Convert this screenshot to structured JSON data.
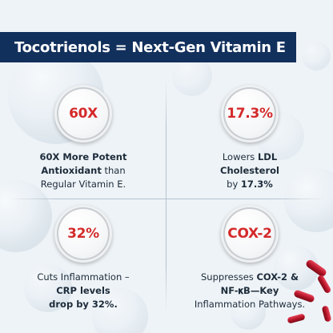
{
  "header": {
    "title": "Tocotrienols = Next-Gen Vitamin E"
  },
  "colors": {
    "header_bg": "#12305c",
    "accent_red": "#d42a2a",
    "text_dark": "#1c2b3a"
  },
  "stats": [
    {
      "value": "60X",
      "lines": [
        {
          "bold": "60X More Potent",
          "normal": ""
        },
        {
          "bold": "Antioxidant",
          "normal": " than"
        },
        {
          "bold": "",
          "normal": "Regular Vitamin E."
        }
      ]
    },
    {
      "value": "17.3%",
      "lines": [
        {
          "normal": "Lowers ",
          "bold": "LDL"
        },
        {
          "normal": "",
          "bold": "Cholesterol"
        },
        {
          "normal": "by ",
          "bold": "17.3%"
        }
      ]
    },
    {
      "value": "32%",
      "lines": [
        {
          "normal": "Cuts Inflammation –",
          "bold": ""
        },
        {
          "normal": "",
          "bold": "CRP levels"
        },
        {
          "normal": "",
          "bold": "drop by 32%."
        }
      ]
    },
    {
      "value": "COX-2",
      "lines": [
        {
          "normal": "Suppresses ",
          "bold": "COX-2 &"
        },
        {
          "normal": "",
          "bold": "NF-𝛋B—Key"
        },
        {
          "normal": "Inflammation Pathways.",
          "bold": ""
        }
      ]
    }
  ]
}
